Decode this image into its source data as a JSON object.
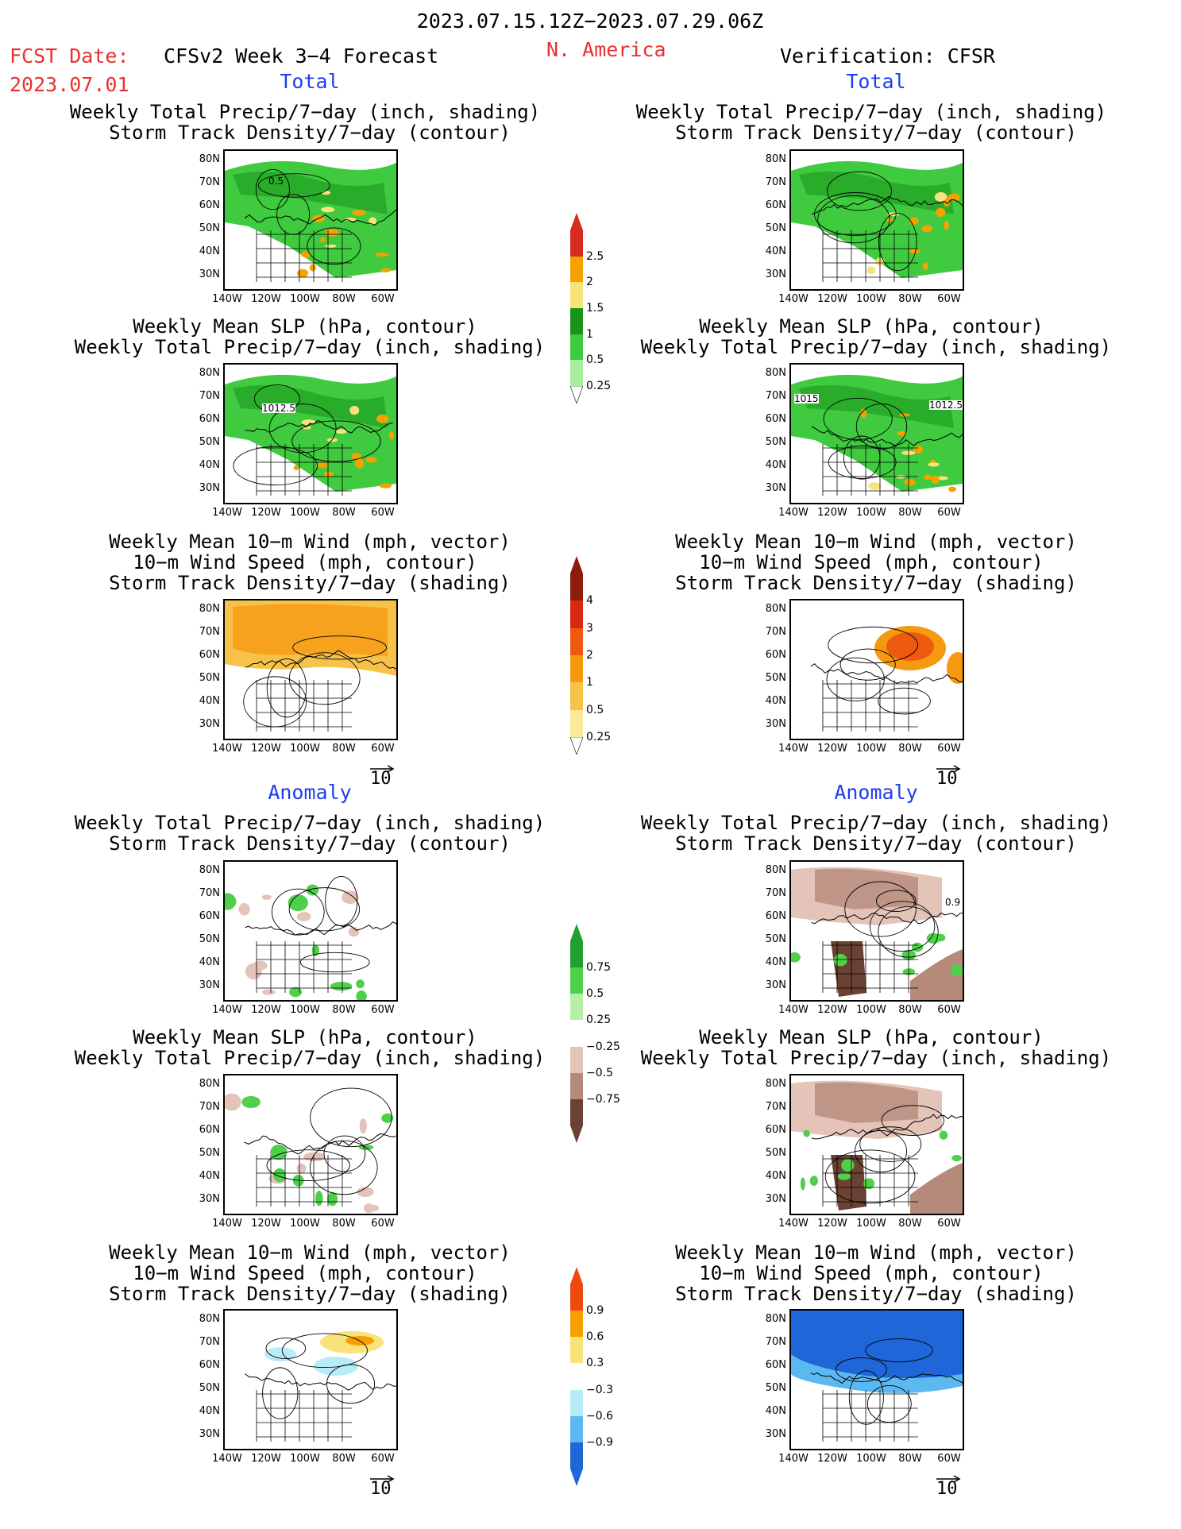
{
  "header": {
    "period": "2023.07.15.12Z−2023.07.29.06Z",
    "fcst_label": "FCST Date:",
    "fcst_date": "2023.07.01",
    "model_title": "CFSv2 Week 3−4 Forecast",
    "region": "N. America",
    "verification": "Verification: CFSR"
  },
  "sections": {
    "total": "Total",
    "anomaly": "Anomaly"
  },
  "titles": {
    "precip_storm": [
      "Weekly Total Precip/7−day (inch, shading)",
      "Storm Track Density/7−day (contour)"
    ],
    "slp_precip": [
      "Weekly Mean SLP (hPa, contour)",
      "Weekly Total Precip/7−day (inch, shading)"
    ],
    "wind_storm": [
      "Weekly Mean 10−m Wind (mph, vector)",
      "10−m Wind Speed (mph, contour)",
      "Storm Track Density/7−day (shading)"
    ]
  },
  "map_axes": {
    "lat_labels": [
      "80N",
      "70N",
      "60N",
      "50N",
      "40N",
      "30N"
    ],
    "lon_labels": [
      "140W",
      "120W",
      "100W",
      "80W",
      "60W"
    ]
  },
  "vector_ref": "10",
  "contour_labels": {
    "total_fcst_storm": "0.5",
    "total_fcst_slp": "1012.5",
    "total_obs_slp_a": "1015",
    "total_obs_slp_b": "1012.5",
    "anom_obs_storm": "0.9"
  },
  "colorbars": {
    "precip_total": {
      "labels": [
        "2.5",
        "2",
        "1.5",
        "1",
        "0.5",
        "0.25"
      ],
      "colors": [
        "#d62d20",
        "#f5a200",
        "#f8e37a",
        "#19931c",
        "#3fca3f",
        "#a6ee9e"
      ]
    },
    "storm_total": {
      "labels": [
        "4",
        "3",
        "2",
        "1",
        "0.5",
        "0.25"
      ],
      "colors": [
        "#8e1b0c",
        "#d82a10",
        "#ee5a10",
        "#f59a10",
        "#f7c24a",
        "#fbe99a"
      ]
    },
    "precip_anom": {
      "labels": [
        "0.75",
        "0.5",
        "0.25",
        "−0.25",
        "−0.5",
        "−0.75"
      ],
      "colors": [
        "#20a030",
        "#4fd04a",
        "#b6f0a8",
        "#ffffff",
        "#e4c3b8",
        "#b58a7b",
        "#6b4133"
      ]
    },
    "storm_anom": {
      "labels": [
        "0.9",
        "0.6",
        "0.3",
        "−0.3",
        "−0.6",
        "−0.9"
      ],
      "colors": [
        "#ee4a10",
        "#f5a000",
        "#f9e27a",
        "#ffffff",
        "#b8ecf8",
        "#5cb8f0",
        "#1f66d8"
      ]
    }
  }
}
